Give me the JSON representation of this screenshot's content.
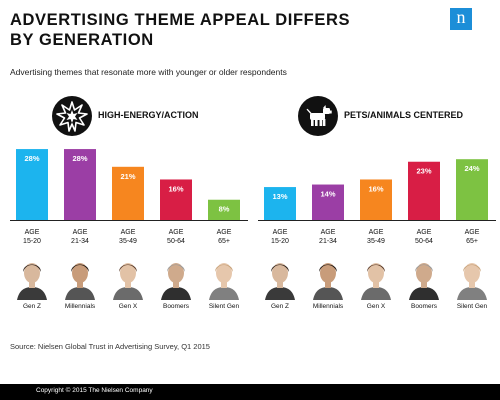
{
  "title_line1": "ADVERTISING THEME APPEAL DIFFERS",
  "title_line2": "BY GENERATION",
  "subtitle": "Advertising themes that resonate more with younger or older respondents",
  "logo_letter": "n",
  "age_groups": [
    {
      "line1": "AGE",
      "line2": "15-20"
    },
    {
      "line1": "AGE",
      "line2": "21-34"
    },
    {
      "line1": "AGE",
      "line2": "35-49"
    },
    {
      "line1": "AGE",
      "line2": "50-64"
    },
    {
      "line1": "AGE",
      "line2": "65+"
    }
  ],
  "generations": [
    "Gen Z",
    "Millennials",
    "Gen X",
    "Boomers",
    "Silent Gen"
  ],
  "colors": [
    "#1cb4ee",
    "#9b3ea5",
    "#f6861f",
    "#d81e45",
    "#7dc242"
  ],
  "chart_data": [
    {
      "type": "bar",
      "title": "HIGH-ENERGY/ACTION",
      "icon": "starburst-icon",
      "categories": [
        "AGE 15-20",
        "AGE 21-34",
        "AGE 35-49",
        "AGE 50-64",
        "AGE 65+"
      ],
      "values": [
        28,
        28,
        21,
        16,
        8
      ],
      "value_labels": [
        "28%",
        "28%",
        "21%",
        "16%",
        "8%"
      ],
      "ylim": [
        0,
        30
      ],
      "grid": false,
      "legend": "none"
    },
    {
      "type": "bar",
      "title": "PETS/ANIMALS CENTERED",
      "icon": "dog-icon",
      "categories": [
        "AGE 15-20",
        "AGE 21-34",
        "AGE 35-49",
        "AGE 50-64",
        "AGE 65+"
      ],
      "values": [
        13,
        14,
        16,
        23,
        24
      ],
      "value_labels": [
        "13%",
        "14%",
        "16%",
        "23%",
        "24%"
      ],
      "ylim": [
        0,
        30
      ],
      "grid": false,
      "legend": "none"
    }
  ],
  "source": "Source: Nielsen Global Trust in Advertising Survey, Q1 2015",
  "copyright": "Copyright © 2015 The Nielsen Company"
}
